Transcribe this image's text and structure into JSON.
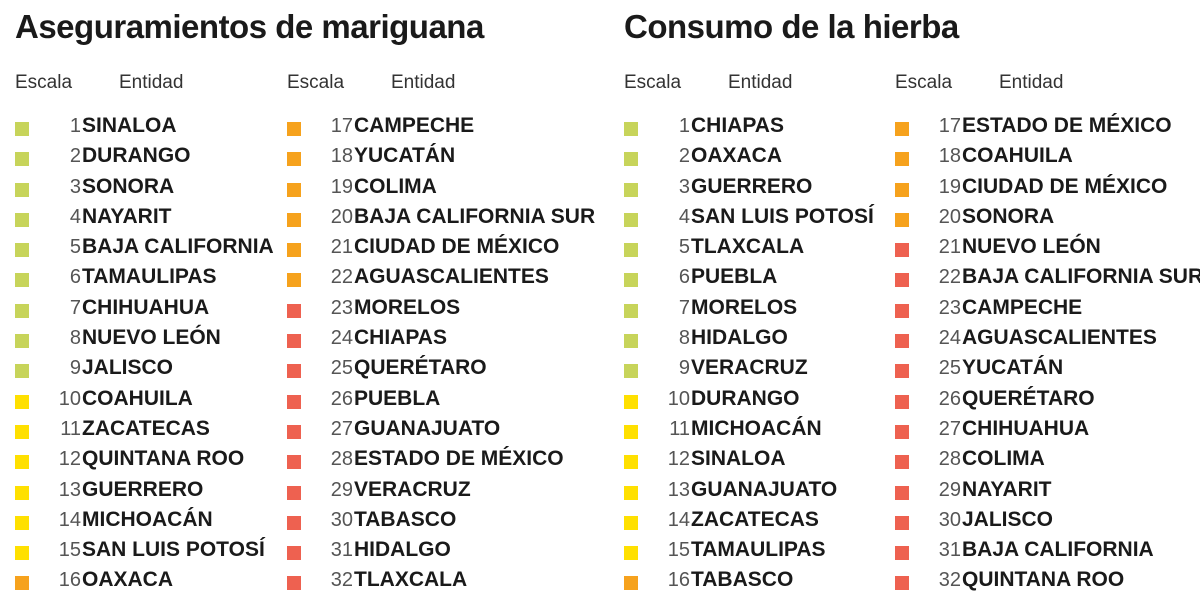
{
  "colors": {
    "green": "#c7d45a",
    "yellow": "#ffe000",
    "orange": "#f6a21d",
    "red": "#ee6150"
  },
  "panels": [
    {
      "title": "Aseguramientos de mariguana",
      "columns": [
        {
          "header_scale": "Escala",
          "header_entity": "Entidad",
          "rows": [
            {
              "rank": "1",
              "entity": "SINALOA",
              "color": "green"
            },
            {
              "rank": "2",
              "entity": "DURANGO",
              "color": "green"
            },
            {
              "rank": "3",
              "entity": "SONORA",
              "color": "green"
            },
            {
              "rank": "4",
              "entity": "NAYARIT",
              "color": "green"
            },
            {
              "rank": "5",
              "entity": "BAJA CALIFORNIA",
              "color": "green"
            },
            {
              "rank": "6",
              "entity": "TAMAULIPAS",
              "color": "green"
            },
            {
              "rank": "7",
              "entity": "CHIHUAHUA",
              "color": "green"
            },
            {
              "rank": "8",
              "entity": "NUEVO LEÓN",
              "color": "green"
            },
            {
              "rank": "9",
              "entity": "JALISCO",
              "color": "green"
            },
            {
              "rank": "10",
              "entity": "COAHUILA",
              "color": "yellow"
            },
            {
              "rank": "11",
              "entity": "ZACATECAS",
              "color": "yellow"
            },
            {
              "rank": "12",
              "entity": "QUINTANA ROO",
              "color": "yellow"
            },
            {
              "rank": "13",
              "entity": "GUERRERO",
              "color": "yellow"
            },
            {
              "rank": "14",
              "entity": "MICHOACÁN",
              "color": "yellow"
            },
            {
              "rank": "15",
              "entity": "SAN LUIS POTOSÍ",
              "color": "yellow"
            },
            {
              "rank": "16",
              "entity": "OAXACA",
              "color": "orange"
            }
          ]
        },
        {
          "header_scale": "Escala",
          "header_entity": "Entidad",
          "rows": [
            {
              "rank": "17",
              "entity": "CAMPECHE",
              "color": "orange"
            },
            {
              "rank": "18",
              "entity": "YUCATÁN",
              "color": "orange"
            },
            {
              "rank": "19",
              "entity": "COLIMA",
              "color": "orange"
            },
            {
              "rank": "20",
              "entity": "BAJA CALIFORNIA SUR",
              "color": "orange"
            },
            {
              "rank": "21",
              "entity": "CIUDAD DE MÉXICO",
              "color": "orange"
            },
            {
              "rank": "22",
              "entity": "AGUASCALIENTES",
              "color": "orange"
            },
            {
              "rank": "23",
              "entity": "MORELOS",
              "color": "red"
            },
            {
              "rank": "24",
              "entity": "CHIAPAS",
              "color": "red"
            },
            {
              "rank": "25",
              "entity": "QUERÉTARO",
              "color": "red"
            },
            {
              "rank": "26",
              "entity": "PUEBLA",
              "color": "red"
            },
            {
              "rank": "27",
              "entity": "GUANAJUATO",
              "color": "red"
            },
            {
              "rank": "28",
              "entity": "ESTADO DE MÉXICO",
              "color": "red"
            },
            {
              "rank": "29",
              "entity": "VERACRUZ",
              "color": "red"
            },
            {
              "rank": "30",
              "entity": "TABASCO",
              "color": "red"
            },
            {
              "rank": "31",
              "entity": "HIDALGO",
              "color": "red"
            },
            {
              "rank": "32",
              "entity": "TLAXCALA",
              "color": "red"
            }
          ]
        }
      ]
    },
    {
      "title": "Consumo de la hierba",
      "columns": [
        {
          "header_scale": "Escala",
          "header_entity": "Entidad",
          "rows": [
            {
              "rank": "1",
              "entity": "CHIAPAS",
              "color": "green"
            },
            {
              "rank": "2",
              "entity": "OAXACA",
              "color": "green"
            },
            {
              "rank": "3",
              "entity": "GUERRERO",
              "color": "green"
            },
            {
              "rank": "4",
              "entity": "SAN LUIS POTOSÍ",
              "color": "green"
            },
            {
              "rank": "5",
              "entity": "TLAXCALA",
              "color": "green"
            },
            {
              "rank": "6",
              "entity": "PUEBLA",
              "color": "green"
            },
            {
              "rank": "7",
              "entity": "MORELOS",
              "color": "green"
            },
            {
              "rank": "8",
              "entity": "HIDALGO",
              "color": "green"
            },
            {
              "rank": "9",
              "entity": "VERACRUZ",
              "color": "green"
            },
            {
              "rank": "10",
              "entity": "DURANGO",
              "color": "yellow"
            },
            {
              "rank": "11",
              "entity": "MICHOACÁN",
              "color": "yellow"
            },
            {
              "rank": "12",
              "entity": "SINALOA",
              "color": "yellow"
            },
            {
              "rank": "13",
              "entity": "GUANAJUATO",
              "color": "yellow"
            },
            {
              "rank": "14",
              "entity": "ZACATECAS",
              "color": "yellow"
            },
            {
              "rank": "15",
              "entity": "TAMAULIPAS",
              "color": "yellow"
            },
            {
              "rank": "16",
              "entity": "TABASCO",
              "color": "orange"
            }
          ]
        },
        {
          "header_scale": "Escala",
          "header_entity": "Entidad",
          "rows": [
            {
              "rank": "17",
              "entity": "ESTADO DE MÉXICO",
              "color": "orange"
            },
            {
              "rank": "18",
              "entity": "COAHUILA",
              "color": "orange"
            },
            {
              "rank": "19",
              "entity": "CIUDAD DE MÉXICO",
              "color": "orange"
            },
            {
              "rank": "20",
              "entity": "SONORA",
              "color": "orange"
            },
            {
              "rank": "21",
              "entity": "NUEVO LEÓN",
              "color": "red"
            },
            {
              "rank": "22",
              "entity": "BAJA CALIFORNIA SUR",
              "color": "red"
            },
            {
              "rank": "23",
              "entity": "CAMPECHE",
              "color": "red"
            },
            {
              "rank": "24",
              "entity": "AGUASCALIENTES",
              "color": "red"
            },
            {
              "rank": "25",
              "entity": "YUCATÁN",
              "color": "red"
            },
            {
              "rank": "26",
              "entity": "QUERÉTARO",
              "color": "red"
            },
            {
              "rank": "27",
              "entity": "CHIHUAHUA",
              "color": "red"
            },
            {
              "rank": "28",
              "entity": "COLIMA",
              "color": "red"
            },
            {
              "rank": "29",
              "entity": "NAYARIT",
              "color": "red"
            },
            {
              "rank": "30",
              "entity": "JALISCO",
              "color": "red"
            },
            {
              "rank": "31",
              "entity": "BAJA CALIFORNIA",
              "color": "red"
            },
            {
              "rank": "32",
              "entity": "QUINTANA ROO",
              "color": "red"
            }
          ]
        }
      ]
    }
  ]
}
